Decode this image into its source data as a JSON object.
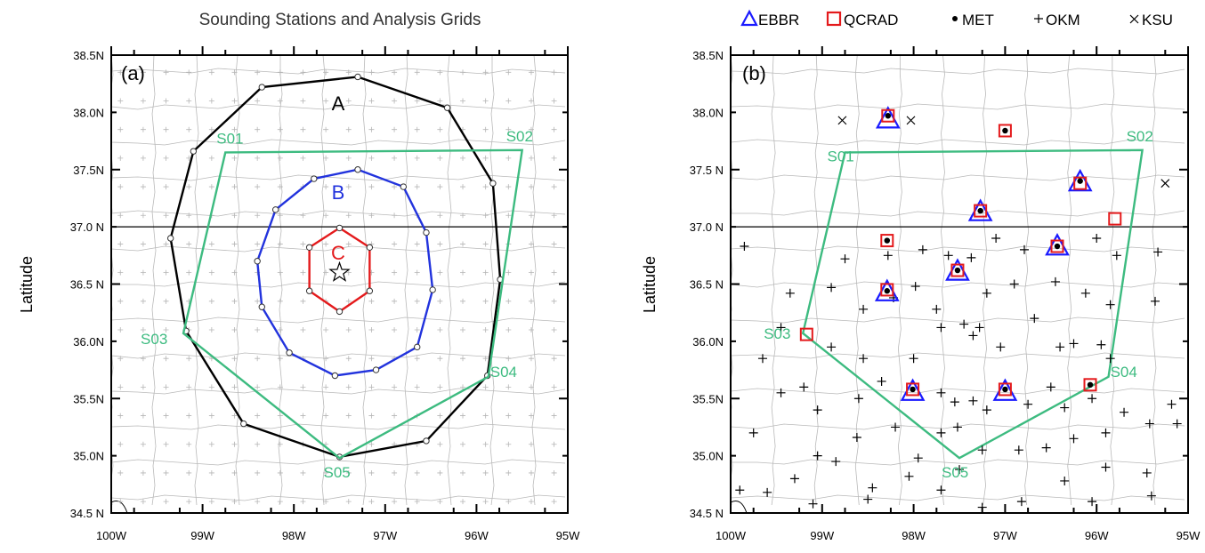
{
  "panel_a": {
    "title": "Sounding Stations and Analysis Grids",
    "label": "(a)",
    "ylabel": "Latitude",
    "xticks": [
      "100W",
      "99W",
      "98W",
      "97W",
      "96W",
      "95W"
    ],
    "yticks": [
      "34.5 N",
      "35.0N",
      "35.5N",
      "36.0N",
      "36.5 N",
      "37.0 N",
      "37.5N",
      "38.0N",
      "38.5N"
    ],
    "grid_labels": {
      "A": "A",
      "B": "B",
      "C": "C"
    },
    "stations": [
      "S01",
      "S02",
      "S03",
      "S04",
      "S05"
    ]
  },
  "panel_b": {
    "label": "(b)",
    "ylabel": "Latitude",
    "xticks": [
      "100W",
      "99W",
      "98W",
      "97W",
      "96W",
      "95W"
    ],
    "yticks": [
      "34.5 N",
      "35.0N",
      "35.5N",
      "36.0N",
      "36.5 N",
      "37.0 N",
      "37.5 N",
      "38.0N",
      "38.5N"
    ],
    "stations": [
      "S01",
      "S02",
      "S03",
      "S04",
      "S05"
    ],
    "legend": [
      {
        "symbol": "triangle",
        "label": "EBBR",
        "color": "#1a1aff"
      },
      {
        "symbol": "square",
        "label": "QCRAD",
        "color": "#e41a1c"
      },
      {
        "symbol": "dot",
        "label": "MET",
        "color": "#000000"
      },
      {
        "symbol": "plus",
        "label": "OKM",
        "color": "#000000"
      },
      {
        "symbol": "cross",
        "label": "KSU",
        "color": "#000000"
      }
    ]
  },
  "colors": {
    "ring_A": "#000000",
    "ring_B": "#2233dd",
    "ring_C": "#e41a1c",
    "sounding_polygon": "#3dbb80",
    "station_label": "#3dbb80"
  },
  "geo_data": {
    "ring_A": [
      [
        -97.3,
        38.31
      ],
      [
        -96.32,
        38.04
      ],
      [
        -95.82,
        37.38
      ],
      [
        -95.74,
        36.54
      ],
      [
        -95.88,
        35.7
      ],
      [
        -96.55,
        35.13
      ],
      [
        -97.5,
        34.99
      ],
      [
        -98.55,
        35.28
      ],
      [
        -99.18,
        36.09
      ],
      [
        -99.35,
        36.9
      ],
      [
        -99.1,
        37.66
      ],
      [
        -98.35,
        38.22
      ]
    ],
    "ring_B": [
      [
        -97.3,
        37.5
      ],
      [
        -96.8,
        37.35
      ],
      [
        -96.55,
        36.95
      ],
      [
        -96.48,
        36.45
      ],
      [
        -96.65,
        35.95
      ],
      [
        -97.1,
        35.75
      ],
      [
        -97.55,
        35.7
      ],
      [
        -98.05,
        35.9
      ],
      [
        -98.35,
        36.3
      ],
      [
        -98.4,
        36.7
      ],
      [
        -98.2,
        37.15
      ],
      [
        -97.78,
        37.42
      ]
    ],
    "ring_C": [
      [
        -97.5,
        36.99
      ],
      [
        -97.17,
        36.82
      ],
      [
        -97.17,
        36.44
      ],
      [
        -97.5,
        36.26
      ],
      [
        -97.83,
        36.44
      ],
      [
        -97.83,
        36.82
      ]
    ],
    "center_star": [
      -97.5,
      36.6
    ],
    "sounding_polygon": [
      [
        -98.75,
        37.65
      ],
      [
        -95.5,
        37.67
      ],
      [
        -95.87,
        35.69
      ],
      [
        -97.5,
        34.98
      ],
      [
        -99.21,
        36.07
      ]
    ],
    "stations": [
      {
        "name": "S01",
        "lon": -98.75,
        "lat": 37.65
      },
      {
        "name": "S02",
        "lon": -95.5,
        "lat": 37.67
      },
      {
        "name": "S03",
        "lon": -99.21,
        "lat": 36.07
      },
      {
        "name": "S04",
        "lon": -95.87,
        "lat": 35.69
      },
      {
        "name": "S05",
        "lon": -97.5,
        "lat": 34.98
      }
    ],
    "ebbr": [
      [
        -98.28,
        37.93
      ],
      [
        -97.27,
        37.12
      ],
      [
        -96.18,
        37.38
      ],
      [
        -96.43,
        36.82
      ],
      [
        -97.52,
        36.6
      ],
      [
        -98.29,
        36.42
      ],
      [
        -98.01,
        35.55
      ],
      [
        -97.0,
        35.55
      ]
    ],
    "qcrad": [
      [
        -98.28,
        37.97
      ],
      [
        -97.0,
        37.84
      ],
      [
        -97.27,
        37.14
      ],
      [
        -96.18,
        37.38
      ],
      [
        -95.8,
        37.07
      ],
      [
        -98.29,
        36.88
      ],
      [
        -96.43,
        36.83
      ],
      [
        -97.52,
        36.62
      ],
      [
        -98.29,
        36.45
      ],
      [
        -99.17,
        36.06
      ],
      [
        -98.01,
        35.58
      ],
      [
        -97.0,
        35.58
      ],
      [
        -96.07,
        35.62
      ]
    ],
    "met": [
      [
        -98.28,
        37.97
      ],
      [
        -97.0,
        37.84
      ],
      [
        -97.27,
        37.14
      ],
      [
        -96.18,
        37.4
      ],
      [
        -98.29,
        36.88
      ],
      [
        -96.43,
        36.83
      ],
      [
        -97.52,
        36.62
      ],
      [
        -98.29,
        36.44
      ],
      [
        -98.01,
        35.58
      ],
      [
        -97.0,
        35.58
      ],
      [
        -96.07,
        35.62
      ]
    ],
    "ksu": [
      [
        -98.78,
        37.93
      ],
      [
        -98.03,
        37.93
      ],
      [
        -95.25,
        37.38
      ]
    ],
    "okm": [
      [
        -99.85,
        36.83
      ],
      [
        -98.75,
        36.72
      ],
      [
        -98.28,
        36.75
      ],
      [
        -97.9,
        36.8
      ],
      [
        -97.62,
        36.75
      ],
      [
        -97.37,
        36.73
      ],
      [
        -97.1,
        36.9
      ],
      [
        -96.79,
        36.8
      ],
      [
        -96.0,
        36.9
      ],
      [
        -95.78,
        36.75
      ],
      [
        -95.33,
        36.78
      ],
      [
        -99.35,
        36.42
      ],
      [
        -98.9,
        36.47
      ],
      [
        -98.55,
        36.28
      ],
      [
        -98.22,
        36.38
      ],
      [
        -97.98,
        36.48
      ],
      [
        -97.75,
        36.28
      ],
      [
        -97.2,
        36.42
      ],
      [
        -96.9,
        36.5
      ],
      [
        -96.45,
        36.52
      ],
      [
        -96.12,
        36.42
      ],
      [
        -95.85,
        36.32
      ],
      [
        -95.36,
        36.35
      ],
      [
        -99.45,
        36.12
      ],
      [
        -98.9,
        35.95
      ],
      [
        -98.55,
        35.85
      ],
      [
        -98.0,
        35.85
      ],
      [
        -97.7,
        36.12
      ],
      [
        -97.45,
        36.15
      ],
      [
        -97.35,
        36.05
      ],
      [
        -97.28,
        36.12
      ],
      [
        -97.05,
        35.95
      ],
      [
        -96.68,
        36.2
      ],
      [
        -96.4,
        35.95
      ],
      [
        -96.25,
        35.98
      ],
      [
        -95.95,
        35.97
      ],
      [
        -95.85,
        35.85
      ],
      [
        -99.65,
        35.85
      ],
      [
        -99.45,
        35.55
      ],
      [
        -99.05,
        35.4
      ],
      [
        -99.2,
        35.6
      ],
      [
        -98.6,
        35.5
      ],
      [
        -98.35,
        35.65
      ],
      [
        -97.7,
        35.55
      ],
      [
        -97.55,
        35.47
      ],
      [
        -97.52,
        35.25
      ],
      [
        -97.35,
        35.48
      ],
      [
        -97.2,
        35.4
      ],
      [
        -96.75,
        35.45
      ],
      [
        -96.5,
        35.6
      ],
      [
        -96.35,
        35.42
      ],
      [
        -96.05,
        35.5
      ],
      [
        -95.7,
        35.38
      ],
      [
        -99.75,
        35.2
      ],
      [
        -99.05,
        35.0
      ],
      [
        -98.62,
        35.16
      ],
      [
        -98.2,
        35.25
      ],
      [
        -97.95,
        34.98
      ],
      [
        -97.7,
        35.2
      ],
      [
        -97.25,
        35.05
      ],
      [
        -96.85,
        35.05
      ],
      [
        -96.55,
        35.07
      ],
      [
        -96.25,
        35.15
      ],
      [
        -95.9,
        35.2
      ],
      [
        -95.42,
        35.28
      ],
      [
        -99.9,
        34.7
      ],
      [
        -99.3,
        34.8
      ],
      [
        -98.85,
        34.95
      ],
      [
        -98.45,
        34.72
      ],
      [
        -98.05,
        34.82
      ],
      [
        -97.7,
        34.7
      ],
      [
        -97.5,
        34.88
      ],
      [
        -96.82,
        34.6
      ],
      [
        -96.35,
        34.78
      ],
      [
        -95.9,
        34.9
      ],
      [
        -95.45,
        34.85
      ],
      [
        -95.18,
        35.45
      ],
      [
        -95.12,
        35.28
      ],
      [
        -99.6,
        34.68
      ],
      [
        -99.1,
        34.58
      ],
      [
        -98.5,
        34.62
      ],
      [
        -97.25,
        34.55
      ],
      [
        -96.05,
        34.6
      ],
      [
        -95.4,
        34.65
      ]
    ]
  }
}
